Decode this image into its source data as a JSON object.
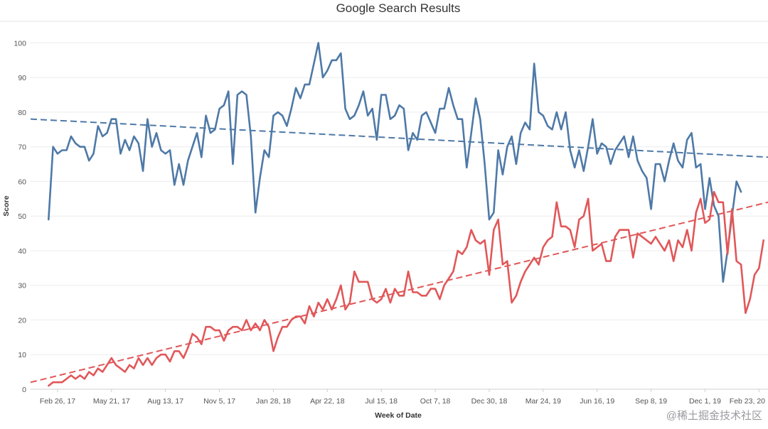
{
  "chart_data": {
    "type": "line",
    "title": "Google Search Results",
    "xlabel": "Week of Date",
    "ylabel": "Score",
    "ylim": [
      0,
      105
    ],
    "yticks": [
      0,
      10,
      20,
      30,
      40,
      50,
      60,
      70,
      80,
      90,
      100
    ],
    "xlim": [
      "2017-01-15",
      "2020-03-08"
    ],
    "xticks": [
      {
        "label": "Feb 26, 17",
        "date": "2017-02-26"
      },
      {
        "label": "May 21, 17",
        "date": "2017-05-21"
      },
      {
        "label": "Aug 13, 17",
        "date": "2017-08-13"
      },
      {
        "label": "Nov 5, 17",
        "date": "2017-11-05"
      },
      {
        "label": "Jan 28, 18",
        "date": "2018-01-28"
      },
      {
        "label": "Apr 22, 18",
        "date": "2018-04-22"
      },
      {
        "label": "Jul 15, 18",
        "date": "2018-07-15"
      },
      {
        "label": "Oct 7, 18",
        "date": "2018-10-07"
      },
      {
        "label": "Dec 30, 18",
        "date": "2018-12-30"
      },
      {
        "label": "Mar 24, 19",
        "date": "2019-03-24"
      },
      {
        "label": "Jun 16, 19",
        "date": "2019-06-16"
      },
      {
        "label": "Sep 8, 19",
        "date": "2019-09-08"
      },
      {
        "label": "Dec 1, 19",
        "date": "2019-12-01"
      },
      {
        "label": "Feb 23, 20",
        "date": "2020-02-23"
      }
    ],
    "grid": true,
    "legend": "none",
    "series": [
      {
        "color": "#4e79a7",
        "start": "2017-02-12",
        "interval_weeks": 1,
        "values": [
          49,
          70,
          68,
          69,
          69,
          73,
          71,
          70,
          70,
          66,
          68,
          76,
          73,
          74,
          78,
          78,
          68,
          72,
          69,
          73,
          71,
          63,
          78,
          70,
          74,
          69,
          68,
          69,
          59,
          65,
          59,
          66,
          70,
          74,
          67,
          79,
          74,
          75,
          81,
          82,
          86,
          65,
          85,
          86,
          85,
          73,
          51,
          61,
          69,
          67,
          79,
          80,
          79,
          76,
          81,
          87,
          84,
          88,
          88,
          94,
          100,
          90,
          92,
          95,
          95,
          97,
          81,
          78,
          79,
          82,
          86,
          79,
          81,
          72,
          85,
          85,
          78,
          79,
          82,
          81,
          69,
          74,
          72,
          79,
          80,
          77,
          74,
          81,
          81,
          87,
          82,
          78,
          78,
          64,
          74,
          84,
          78,
          65,
          49,
          51,
          69,
          62,
          70,
          73,
          65,
          74,
          77,
          75,
          94,
          80,
          79,
          76,
          75,
          80,
          75,
          80,
          69,
          64,
          69,
          63,
          70,
          78,
          68,
          71,
          70,
          65,
          69,
          71,
          73,
          67,
          73,
          66,
          63,
          61,
          52,
          65,
          65,
          60,
          66,
          71,
          66,
          64,
          72,
          74,
          64,
          65,
          52,
          61,
          53,
          50,
          31,
          40,
          50,
          60,
          57
        ]
      },
      {
        "color": "#e15759",
        "start": "2017-02-12",
        "interval_weeks": 1,
        "values": [
          1,
          2,
          2,
          2,
          3,
          4,
          3,
          4,
          3,
          5,
          4,
          6,
          5,
          7,
          9,
          7,
          6,
          5,
          7,
          6,
          9,
          7,
          9,
          7,
          9,
          10,
          10,
          8,
          11,
          11,
          9,
          12,
          16,
          15,
          13,
          18,
          18,
          17,
          17,
          14,
          17,
          18,
          18,
          17,
          20,
          17,
          19,
          17,
          20,
          18,
          11,
          15,
          18,
          18,
          20,
          21,
          21,
          19,
          24,
          21,
          25,
          23,
          26,
          23,
          26,
          30,
          23,
          25,
          34,
          31,
          31,
          31,
          26,
          25,
          26,
          29,
          25,
          29,
          27,
          27,
          34,
          28,
          28,
          27,
          27,
          29,
          29,
          26,
          30,
          32,
          34,
          40,
          39,
          41,
          46,
          43,
          42,
          43,
          33,
          46,
          49,
          36,
          37,
          25,
          27,
          31,
          34,
          36,
          38,
          36,
          41,
          43,
          44,
          54,
          47,
          47,
          46,
          41,
          49,
          50,
          55,
          40,
          41,
          42,
          37,
          37,
          44,
          46,
          46,
          46,
          38,
          45,
          44,
          43,
          42,
          44,
          42,
          40,
          43,
          37,
          43,
          41,
          46,
          40,
          51,
          55,
          48,
          49,
          57,
          54,
          54,
          39,
          52,
          37,
          36,
          22,
          26,
          33,
          35,
          43
        ]
      }
    ],
    "trend_lines": [
      {
        "color": "#4e79a7",
        "from": {
          "date": "2017-01-15",
          "value": 78
        },
        "to": {
          "date": "2020-03-08",
          "value": 67
        }
      },
      {
        "color": "#e15759",
        "from": {
          "date": "2017-01-15",
          "value": 2
        },
        "to": {
          "date": "2020-03-08",
          "value": 54
        }
      }
    ]
  },
  "watermark": "@稀土掘金技术社区"
}
